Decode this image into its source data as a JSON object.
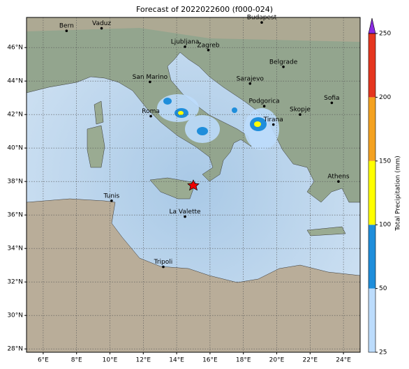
{
  "map": {
    "title": "Forecast of 2022022600 (f000-024)",
    "xlim": [
      5,
      25
    ],
    "ylim": [
      27.8,
      47.8
    ],
    "xticks": [
      {
        "value": 6,
        "label": "6°E"
      },
      {
        "value": 8,
        "label": "8°E"
      },
      {
        "value": 10,
        "label": "10°E"
      },
      {
        "value": 12,
        "label": "12°E"
      },
      {
        "value": 14,
        "label": "14°E"
      },
      {
        "value": 16,
        "label": "16°E"
      },
      {
        "value": 18,
        "label": "18°E"
      },
      {
        "value": 20,
        "label": "20°E"
      },
      {
        "value": 22,
        "label": "22°E"
      },
      {
        "value": 24,
        "label": "24°E"
      }
    ],
    "yticks": [
      {
        "value": 28,
        "label": "28°N"
      },
      {
        "value": 30,
        "label": "30°N"
      },
      {
        "value": 32,
        "label": "32°N"
      },
      {
        "value": 34,
        "label": "34°N"
      },
      {
        "value": 36,
        "label": "36°N"
      },
      {
        "value": 38,
        "label": "38°N"
      },
      {
        "value": 40,
        "label": "40°N"
      },
      {
        "value": 42,
        "label": "42°N"
      },
      {
        "value": 44,
        "label": "44°N"
      },
      {
        "value": 46,
        "label": "46°N"
      }
    ],
    "grid": true,
    "cities": [
      {
        "name": "Bern",
        "lon": 7.4,
        "lat": 47.0
      },
      {
        "name": "Vaduz",
        "lon": 9.5,
        "lat": 47.15
      },
      {
        "name": "Budapest",
        "lon": 19.1,
        "lat": 47.5
      },
      {
        "name": "Ljubljana",
        "lon": 14.5,
        "lat": 46.05
      },
      {
        "name": "Zagreb",
        "lon": 15.9,
        "lat": 45.85
      },
      {
        "name": "Belgrade",
        "lon": 20.4,
        "lat": 44.85
      },
      {
        "name": "San Marino",
        "lon": 12.4,
        "lat": 43.95
      },
      {
        "name": "Sarajevo",
        "lon": 18.4,
        "lat": 43.85
      },
      {
        "name": "Sofia",
        "lon": 23.3,
        "lat": 42.7
      },
      {
        "name": "Podgorica",
        "lon": 19.25,
        "lat": 42.5
      },
      {
        "name": "Skopje",
        "lon": 21.4,
        "lat": 42.0
      },
      {
        "name": "Roma",
        "lon": 12.45,
        "lat": 41.9
      },
      {
        "name": "Tirana",
        "lon": 19.8,
        "lat": 41.4
      },
      {
        "name": "Athens",
        "lon": 23.7,
        "lat": 38.0
      },
      {
        "name": "Tunis",
        "lon": 10.1,
        "lat": 36.85
      },
      {
        "name": "La Valette",
        "lon": 14.5,
        "lat": 35.9
      },
      {
        "name": "Tripoli",
        "lon": 13.2,
        "lat": 32.9
      }
    ],
    "colorbar": {
      "label": "Total Precipitation (mm)",
      "levels": [
        25,
        50,
        100,
        150,
        200,
        250
      ],
      "colors": [
        "#bcdcfc",
        "#1f8edb",
        "#ffff00",
        "#f4a221",
        "#e5361f"
      ],
      "extend_color": "#8a2be2"
    }
  }
}
